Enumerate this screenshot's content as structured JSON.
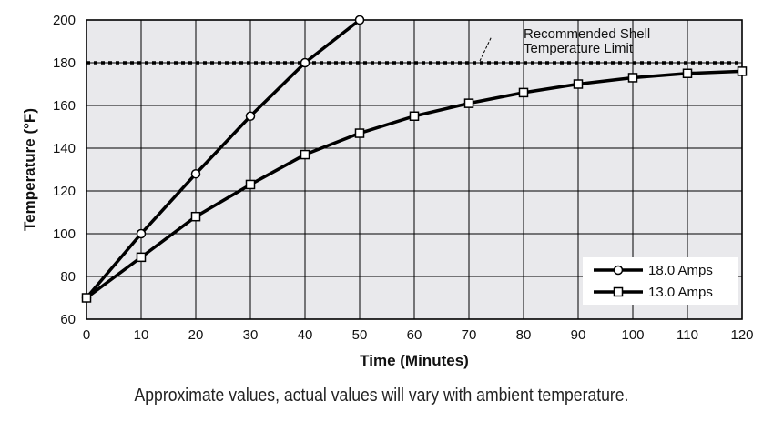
{
  "chart_data": {
    "type": "line",
    "title": "",
    "xlabel": "Time (Minutes)",
    "ylabel": "Temperature (°F)",
    "xlim": [
      0,
      120
    ],
    "ylim": [
      60,
      200
    ],
    "x_ticks": [
      0,
      10,
      20,
      30,
      40,
      50,
      60,
      70,
      80,
      90,
      100,
      110,
      120
    ],
    "y_ticks": [
      60,
      80,
      100,
      120,
      140,
      160,
      180,
      200
    ],
    "grid": true,
    "legend_position": "bottom-right",
    "series": [
      {
        "name": "18.0 Amps",
        "marker": "circle",
        "x": [
          0,
          10,
          20,
          30,
          40,
          50
        ],
        "y": [
          70,
          100,
          128,
          155,
          180,
          200
        ]
      },
      {
        "name": "13.0 Amps",
        "marker": "square",
        "x": [
          0,
          10,
          20,
          30,
          40,
          50,
          60,
          70,
          80,
          90,
          100,
          110,
          120
        ],
        "y": [
          70,
          89,
          108,
          123,
          137,
          147,
          155,
          161,
          166,
          170,
          173,
          175,
          176
        ]
      }
    ],
    "reference_line": {
      "y": 180,
      "style": "dotted",
      "label_line1": "Recommended Shell",
      "label_line2": "Temperature Limit"
    },
    "caption": "Approximate values, actual values will vary with ambient temperature."
  }
}
